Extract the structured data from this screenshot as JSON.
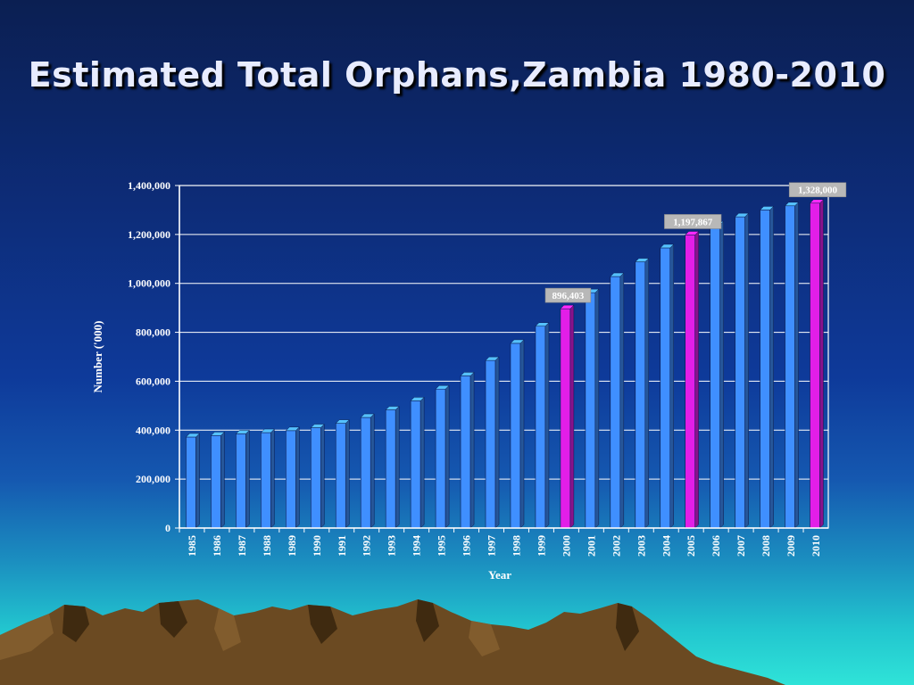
{
  "slide": {
    "title": "Estimated Total Orphans,Zambia 1980-2010"
  },
  "colors": {
    "bar": "#3f8fff",
    "bar_highlight": "#e21ee8",
    "gridline": "#ffffff",
    "label_bg": "#b8b8b8"
  },
  "chart_data": {
    "type": "bar",
    "title": "",
    "xlabel": "Year",
    "ylabel": "Number ('000)",
    "ylim": [
      0,
      1400000
    ],
    "yticks": [
      0,
      200000,
      400000,
      600000,
      800000,
      1000000,
      1200000,
      1400000
    ],
    "ytick_labels": [
      "0",
      "200,000",
      "400,000",
      "600,000",
      "800,000",
      "1,000,000",
      "1,200,000",
      "1,400,000"
    ],
    "grid": true,
    "categories": [
      "1985",
      "1986",
      "1987",
      "1988",
      "1989",
      "1990",
      "1991",
      "1992",
      "1993",
      "1994",
      "1995",
      "1996",
      "1997",
      "1998",
      "1999",
      "2000",
      "2001",
      "2002",
      "2003",
      "2004",
      "2005",
      "2006",
      "2007",
      "2008",
      "2009",
      "2010"
    ],
    "values": [
      372000,
      378000,
      385000,
      390000,
      398000,
      410000,
      428000,
      452000,
      483000,
      520000,
      568000,
      622000,
      685000,
      755000,
      825000,
      896403,
      962000,
      1028000,
      1088000,
      1145000,
      1197867,
      1238000,
      1272000,
      1300000,
      1317000,
      1328000
    ],
    "highlighted": [
      "2000",
      "2005",
      "2010"
    ],
    "data_labels": [
      {
        "category": "2000",
        "text": "896,403"
      },
      {
        "category": "2005",
        "text": "1,197,867"
      },
      {
        "category": "2010",
        "text": "1,328,000"
      }
    ]
  }
}
